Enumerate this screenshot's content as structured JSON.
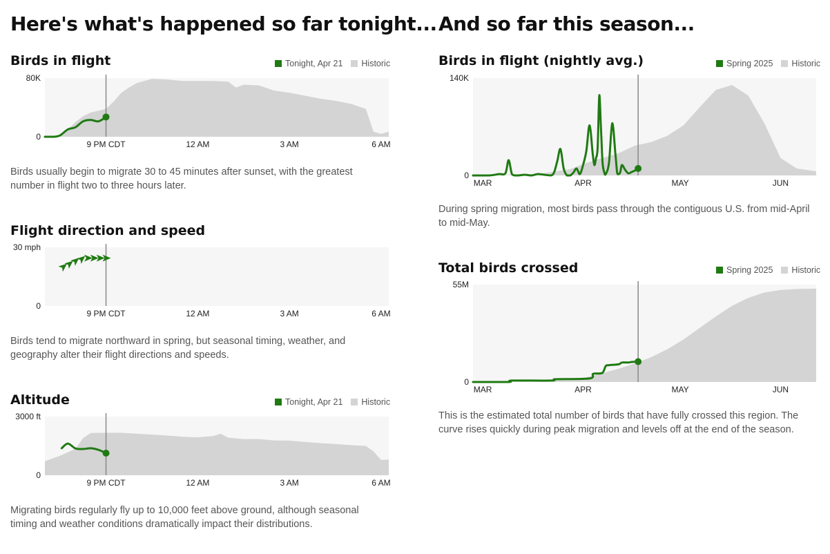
{
  "colors": {
    "current": "#1f7a12",
    "historic": "#d4d4d4",
    "panel": "#f6f6f6",
    "nowline": "#888888"
  },
  "left": {
    "heading": "Here's what's happened so far tonight...",
    "panels": {
      "flight": {
        "title": "Birds in flight",
        "legend": {
          "current": "Tonight, Apr 21",
          "historic": "Historic"
        },
        "description": "Birds usually begin to migrate 30 to 45 minutes after sunset, with the greatest number in flight two to three hours later."
      },
      "direction": {
        "title": "Flight direction and speed",
        "description": "Birds tend to migrate northward in spring, but seasonal timing, weather, and geography alter their flight directions and speeds."
      },
      "altitude": {
        "title": "Altitude",
        "legend": {
          "current": "Tonight, Apr 21",
          "historic": "Historic"
        },
        "description": "Migrating birds regularly fly up to 10,000 feet above ground, although seasonal timing and weather conditions dramatically impact their distributions."
      }
    }
  },
  "right": {
    "heading": "And so far this season...",
    "panels": {
      "nightly": {
        "title": "Birds in flight (nightly avg.)",
        "legend": {
          "current": "Spring 2025",
          "historic": "Historic"
        },
        "description": "During spring migration, most birds pass through the contiguous U.S. from mid-April to mid-May."
      },
      "total": {
        "title": "Total birds crossed",
        "legend": {
          "current": "Spring 2025",
          "historic": "Historic"
        },
        "description": "This is the estimated total number of birds that have fully crossed this region. The curve rises quickly during peak migration and levels off at the end of the season."
      }
    }
  },
  "chart_data": [
    {
      "id": "birds-in-flight",
      "type": "area",
      "title": "Birds in flight",
      "x_unit": "hours after 7 PM CDT",
      "xlim": [
        0,
        11.25
      ],
      "ylim": [
        0,
        80000
      ],
      "yticks": [
        "0",
        "80K"
      ],
      "xticks": [
        {
          "x": 2,
          "label": "9 PM CDT"
        },
        {
          "x": 5,
          "label": "12 AM"
        },
        {
          "x": 8,
          "label": "3 AM"
        },
        {
          "x": 11,
          "label": "6 AM"
        }
      ],
      "now": 2,
      "series": [
        {
          "name": "Historic",
          "role": "historic",
          "x": [
            0,
            0.5,
            0.75,
            1.0,
            1.25,
            1.5,
            2.0,
            2.25,
            2.5,
            2.75,
            3.0,
            3.25,
            3.5,
            4.0,
            4.5,
            5.0,
            5.5,
            6.0,
            6.25,
            6.5,
            7.0,
            7.5,
            8.0,
            8.5,
            9.0,
            9.5,
            10.0,
            10.5,
            10.75,
            11.0,
            11.25
          ],
          "y": [
            0,
            0,
            10000,
            20000,
            28000,
            33000,
            38000,
            48000,
            60000,
            67000,
            73000,
            76000,
            79000,
            78000,
            76000,
            76000,
            76000,
            75000,
            67000,
            71000,
            70000,
            63000,
            60000,
            56000,
            52000,
            49000,
            45000,
            38000,
            7000,
            4000,
            7000
          ]
        },
        {
          "name": "Tonight, Apr 21",
          "role": "current",
          "x": [
            0,
            0.3,
            0.5,
            0.75,
            1.0,
            1.25,
            1.5,
            1.75,
            2.0
          ],
          "y": [
            0,
            0,
            2000,
            10000,
            13000,
            21000,
            23000,
            21000,
            27000
          ]
        }
      ]
    },
    {
      "id": "flight-direction-speed",
      "type": "scatter",
      "title": "Flight direction and speed",
      "x_unit": "hours after 7 PM CDT",
      "xlim": [
        0,
        11.25
      ],
      "ylim": [
        0,
        30
      ],
      "yticks": [
        "0",
        "30 mph"
      ],
      "xticks": [
        {
          "x": 2,
          "label": "9 PM CDT"
        },
        {
          "x": 5,
          "label": "12 AM"
        },
        {
          "x": 8,
          "label": "3 AM"
        },
        {
          "x": 11,
          "label": "6 AM"
        }
      ],
      "now": 2,
      "series": [
        {
          "name": "Tonight, Apr 21",
          "role": "current",
          "x": [
            0.6,
            0.8,
            1.0,
            1.2,
            1.4,
            1.6,
            1.8,
            2.0
          ],
          "y": [
            20,
            21.5,
            23,
            24,
            24.5,
            24.5,
            24.5,
            24.5
          ],
          "direction": [
            "NE",
            "NE",
            "NE",
            "NE",
            "E",
            "E",
            "E",
            "E"
          ]
        }
      ]
    },
    {
      "id": "altitude",
      "type": "area",
      "title": "Altitude",
      "x_unit": "hours after 7 PM CDT",
      "xlim": [
        0,
        11.25
      ],
      "ylim": [
        0,
        3000
      ],
      "yticks": [
        "0",
        "3000 ft"
      ],
      "xticks": [
        {
          "x": 2,
          "label": "9 PM CDT"
        },
        {
          "x": 5,
          "label": "12 AM"
        },
        {
          "x": 8,
          "label": "3 AM"
        },
        {
          "x": 11,
          "label": "6 AM"
        }
      ],
      "now": 2,
      "series": [
        {
          "name": "Historic",
          "role": "historic",
          "x": [
            0,
            0.5,
            1.0,
            1.25,
            1.5,
            2.0,
            2.5,
            3.0,
            3.5,
            4.0,
            4.5,
            5.0,
            5.5,
            5.75,
            6.0,
            6.5,
            7.0,
            7.5,
            8.0,
            8.5,
            9.0,
            9.5,
            10.0,
            10.5,
            10.75,
            11.0,
            11.25
          ],
          "y": [
            720,
            1000,
            1350,
            1900,
            2160,
            2170,
            2170,
            2120,
            2080,
            2030,
            1970,
            1940,
            2000,
            2120,
            1920,
            1850,
            1850,
            1780,
            1770,
            1700,
            1640,
            1600,
            1540,
            1500,
            1220,
            780,
            800
          ]
        },
        {
          "name": "Tonight, Apr 21",
          "role": "current",
          "x": [
            0.55,
            0.75,
            1.0,
            1.25,
            1.5,
            1.75,
            2.0
          ],
          "y": [
            1380,
            1620,
            1370,
            1340,
            1380,
            1300,
            1130
          ]
        }
      ]
    },
    {
      "id": "nightly-avg",
      "type": "area",
      "title": "Birds in flight (nightly avg.)",
      "x_unit": "day of season (0 = Mar 1)",
      "xlim": [
        0,
        106
      ],
      "ylim": [
        0,
        140000
      ],
      "yticks": [
        "0",
        "140K"
      ],
      "xticks": [
        {
          "x": 3,
          "label": "MAR"
        },
        {
          "x": 34,
          "label": "APR"
        },
        {
          "x": 64,
          "label": "MAY"
        },
        {
          "x": 95,
          "label": "JUN"
        }
      ],
      "now": 51,
      "series": [
        {
          "name": "Historic",
          "role": "historic",
          "x": [
            0,
            10,
            20,
            30,
            35,
            40,
            45,
            50,
            55,
            60,
            65,
            70,
            75,
            80,
            85,
            90,
            95,
            100,
            106
          ],
          "y": [
            0,
            500,
            2000,
            9000,
            18000,
            25000,
            32000,
            43000,
            48000,
            57000,
            72000,
            98000,
            123000,
            130000,
            115000,
            75000,
            25000,
            10000,
            6000
          ]
        },
        {
          "name": "Spring 2025",
          "role": "current",
          "x": [
            0,
            5,
            8,
            10,
            11,
            12,
            13,
            14,
            16,
            18,
            20,
            22,
            24,
            25,
            26,
            27,
            28,
            29,
            30,
            31,
            32,
            33,
            34,
            35,
            36,
            37,
            37.5,
            38,
            38.5,
            39,
            39.5,
            40,
            40.5,
            41,
            42,
            43,
            44,
            44.5,
            45,
            45.5,
            46,
            47,
            48,
            49,
            50,
            51
          ],
          "y": [
            0,
            0,
            2000,
            3000,
            22000,
            2000,
            0,
            0,
            1000,
            0,
            2000,
            1000,
            0,
            4000,
            20000,
            38000,
            10000,
            0,
            0,
            4000,
            10000,
            2000,
            15000,
            35000,
            72000,
            30000,
            15000,
            25000,
            40000,
            115000,
            70000,
            20000,
            5000,
            2000,
            18000,
            75000,
            30000,
            5000,
            2000,
            5000,
            15000,
            8000,
            3000,
            5000,
            7000,
            10000
          ]
        }
      ]
    },
    {
      "id": "total-crossed",
      "type": "area",
      "title": "Total birds crossed",
      "x_unit": "day of season (0 = Mar 1)",
      "xlim": [
        0,
        106
      ],
      "ylim": [
        0,
        55000000
      ],
      "yticks": [
        "0",
        "55M"
      ],
      "xticks": [
        {
          "x": 3,
          "label": "MAR"
        },
        {
          "x": 34,
          "label": "APR"
        },
        {
          "x": 64,
          "label": "MAY"
        },
        {
          "x": 95,
          "label": "JUN"
        }
      ],
      "now": 51,
      "series": [
        {
          "name": "Historic",
          "role": "historic",
          "x": [
            0,
            10,
            20,
            30,
            35,
            40,
            45,
            50,
            55,
            60,
            65,
            70,
            75,
            80,
            85,
            90,
            95,
            100,
            106
          ],
          "y": [
            0,
            50000,
            300000,
            1500000,
            2700000,
            5000000,
            7500000,
            10500000,
            14000000,
            18500000,
            24000000,
            30500000,
            37000000,
            43000000,
            47500000,
            50500000,
            52000000,
            52500000,
            52700000
          ]
        },
        {
          "name": "Spring 2025",
          "role": "current",
          "x": [
            0,
            11,
            12,
            24,
            25,
            26,
            36,
            37,
            38,
            40,
            41,
            42,
            45,
            46,
            48,
            49,
            51
          ],
          "y": [
            0,
            0,
            800000,
            800000,
            1400000,
            1600000,
            2000000,
            4500000,
            4800000,
            5200000,
            9000000,
            9500000,
            10000000,
            11000000,
            11000000,
            11300000,
            11500000
          ]
        }
      ]
    }
  ]
}
